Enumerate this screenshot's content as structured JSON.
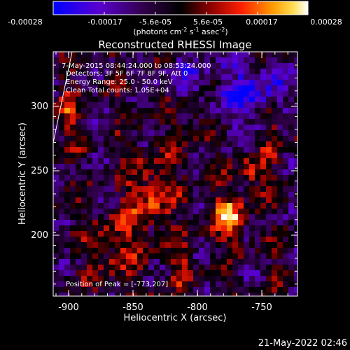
{
  "colorbar": {
    "tick_labels": [
      "-0.00028",
      "-0.00017",
      "-5.6e-05",
      "5.6e-05",
      "0.00017",
      "0.00028"
    ],
    "units_prefix": "(photons cm",
    "units_sup1": "-2",
    "units_mid": " s",
    "units_sup2": "-1",
    "units_mid2": " asec",
    "units_sup3": "-2",
    "units_suffix": ")",
    "colors": [
      "#0000ff",
      "#6a00c8",
      "#3a0050",
      "#000000",
      "#8a0000",
      "#ff2000",
      "#ff9000",
      "#ffd040",
      "#ffffff"
    ]
  },
  "image": {
    "title": "Reconstructed RHESSI Image",
    "info_lines": [
      "7-May-2015 08:44:24.000 to 08:53:24.000",
      "Detectors: 3F 5F 6F 7F 8F 9F, Att 0",
      "Energy Range: 25.0 - 50.0 keV",
      "Clean    Total counts: 1.05E+04"
    ],
    "peak_label": "Position of Peak = [-773,207]",
    "xlabel": "Heliocentric X (arcsec)",
    "ylabel": "Heliocentric Y (arcsec)",
    "xticks": [
      "-900",
      "-850",
      "-800",
      "-750"
    ],
    "yticks": [
      "300",
      "250",
      "200"
    ],
    "xrange": [
      -910,
      -722
    ],
    "yrange": [
      150,
      330
    ]
  },
  "footer": {
    "timestamp": "21-May-2022 02:46"
  }
}
